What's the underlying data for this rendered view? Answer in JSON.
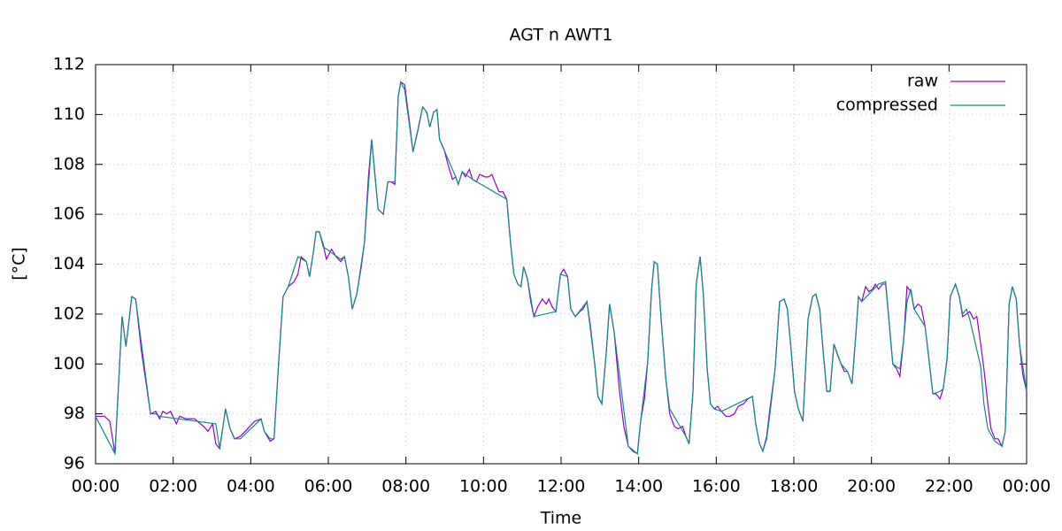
{
  "chart_data": {
    "type": "line",
    "title": "AGT n AWT1",
    "x_label": "Time",
    "y_label": "[°C]",
    "xlim": [
      0,
      1440
    ],
    "ylim": [
      96,
      112
    ],
    "xticks": [
      {
        "value": 0,
        "label": "00:00"
      },
      {
        "value": 120,
        "label": "02:00"
      },
      {
        "value": 240,
        "label": "04:00"
      },
      {
        "value": 360,
        "label": "06:00"
      },
      {
        "value": 480,
        "label": "08:00"
      },
      {
        "value": 600,
        "label": "10:00"
      },
      {
        "value": 720,
        "label": "12:00"
      },
      {
        "value": 840,
        "label": "14:00"
      },
      {
        "value": 960,
        "label": "16:00"
      },
      {
        "value": 1080,
        "label": "18:00"
      },
      {
        "value": 1200,
        "label": "20:00"
      },
      {
        "value": 1320,
        "label": "22:00"
      },
      {
        "value": 1440,
        "label": "00:00"
      }
    ],
    "yticks": [
      96,
      98,
      100,
      102,
      104,
      106,
      108,
      110,
      112
    ],
    "grid": true,
    "legend": "top-right",
    "series": [
      {
        "name": "raw",
        "color": "#9400d3",
        "x": [
          0,
          14,
          22,
          30,
          41,
          47,
          56,
          62,
          71,
          85,
          93,
          99,
          104,
          110,
          116,
          125,
          130,
          140,
          153,
          167,
          174,
          181,
          186,
          192,
          201,
          208,
          215,
          224,
          235,
          246,
          256,
          261,
          270,
          276,
          283,
          290,
          298,
          307,
          313,
          318,
          326,
          331,
          337,
          341,
          346,
          352,
          357,
          365,
          372,
          379,
          385,
          391,
          397,
          404,
          411,
          416,
          422,
          427,
          437,
          445,
          452,
          457,
          463,
          468,
          472,
          478,
          485,
          491,
          498,
          506,
          512,
          517,
          523,
          528,
          532,
          539,
          545,
          552,
          557,
          561,
          567,
          572,
          578,
          583,
          589,
          594,
          602,
          608,
          613,
          619,
          624,
          630,
          636,
          642,
          647,
          653,
          658,
          662,
          668,
          673,
          678,
          684,
          691,
          697,
          701,
          706,
          712,
          719,
          724,
          730,
          735,
          742,
          749,
          754,
          760,
          765,
          772,
          777,
          783,
          790,
          795,
          802,
          810,
          817,
          824,
          831,
          838,
          843,
          849,
          854,
          860,
          864,
          869,
          875,
          882,
          888,
          895,
          901,
          908,
          913,
          918,
          924,
          929,
          935,
          940,
          946,
          951,
          957,
          962,
          968,
          975,
          981,
          988,
          994,
          1002,
          1009,
          1016,
          1021,
          1027,
          1032,
          1038,
          1043,
          1051,
          1058,
          1065,
          1070,
          1076,
          1081,
          1087,
          1094,
          1102,
          1109,
          1114,
          1120,
          1125,
          1131,
          1136,
          1142,
          1147,
          1153,
          1158,
          1163,
          1170,
          1176,
          1180,
          1185,
          1191,
          1196,
          1202,
          1206,
          1211,
          1217,
          1222,
          1228,
          1233,
          1239,
          1244,
          1250,
          1255,
          1261,
          1266,
          1272,
          1277,
          1283,
          1288,
          1295,
          1300,
          1306,
          1311,
          1317,
          1322,
          1330,
          1336,
          1341,
          1347,
          1352,
          1358,
          1363,
          1369,
          1374,
          1380,
          1385,
          1391,
          1396,
          1402,
          1407,
          1413,
          1418,
          1424,
          1429,
          1434,
          1440
        ],
        "values": [
          97.9,
          97.9,
          97.7,
          96.4,
          101.9,
          100.7,
          102.7,
          102.6,
          100.5,
          98.0,
          98.1,
          97.8,
          98.1,
          98.0,
          98.1,
          97.6,
          97.9,
          97.8,
          97.8,
          97.5,
          97.3,
          97.6,
          96.8,
          96.6,
          98.2,
          97.4,
          97.0,
          97.1,
          97.4,
          97.7,
          97.8,
          97.3,
          96.9,
          97.0,
          100.0,
          102.7,
          103.1,
          103.3,
          103.6,
          104.3,
          104.1,
          103.5,
          104.5,
          105.3,
          105.3,
          104.8,
          104.2,
          104.6,
          104.3,
          104.1,
          104.3,
          103.5,
          102.2,
          102.8,
          103.9,
          104.9,
          107.5,
          109.0,
          106.2,
          106.0,
          107.3,
          107.3,
          107.2,
          110.7,
          111.3,
          111.2,
          109.8,
          108.5,
          109.3,
          110.3,
          110.1,
          109.5,
          110.1,
          110.2,
          109.0,
          108.6,
          108.0,
          107.4,
          107.5,
          107.2,
          107.7,
          107.5,
          107.8,
          107.4,
          107.3,
          107.6,
          107.5,
          107.5,
          107.6,
          107.2,
          106.9,
          106.9,
          106.6,
          104.8,
          103.6,
          103.2,
          103.1,
          103.9,
          103.4,
          102.5,
          101.9,
          102.3,
          102.6,
          102.4,
          102.6,
          102.3,
          102.1,
          103.6,
          103.8,
          103.5,
          102.2,
          101.9,
          102.1,
          102.2,
          102.5,
          101.6,
          100.0,
          98.7,
          98.4,
          100.5,
          102.4,
          101.3,
          99.0,
          97.5,
          96.7,
          96.5,
          96.4,
          97.7,
          98.6,
          100.1,
          103.0,
          104.1,
          104.0,
          101.7,
          99.4,
          98.0,
          97.5,
          97.4,
          97.5,
          97.1,
          96.8,
          98.9,
          103.2,
          104.3,
          102.8,
          99.8,
          98.4,
          98.2,
          98.3,
          98.1,
          97.9,
          97.9,
          98.0,
          98.3,
          98.4,
          98.6,
          98.7,
          97.6,
          96.8,
          96.5,
          97.1,
          98.2,
          99.8,
          102.5,
          102.6,
          102.2,
          100.5,
          98.9,
          98.2,
          97.7,
          101.8,
          102.7,
          102.8,
          102.2,
          100.6,
          98.9,
          98.9,
          100.8,
          100.4,
          100.0,
          99.7,
          99.7,
          99.2,
          101.2,
          102.7,
          102.5,
          103.1,
          102.9,
          103.0,
          103.2,
          103.0,
          103.2,
          103.2,
          101.5,
          100.0,
          99.8,
          99.5,
          101.0,
          103.1,
          102.9,
          102.2,
          102.4,
          102.3,
          101.5,
          100.4,
          98.8,
          98.8,
          98.6,
          99.0,
          100.2,
          102.7,
          103.2,
          102.7,
          101.9,
          102.0,
          102.1,
          101.8,
          101.9,
          100.8,
          99.8,
          98.4,
          97.4,
          97.0,
          97.0,
          96.7,
          97.3,
          102.4,
          103.1,
          102.6,
          100.8,
          99.6,
          98.9
        ]
      },
      {
        "name": "compressed",
        "color": "#128a84",
        "x": [
          0,
          30,
          41,
          47,
          56,
          62,
          85,
          93,
          99,
          186,
          192,
          201,
          208,
          215,
          224,
          256,
          261,
          270,
          276,
          283,
          290,
          298,
          313,
          326,
          331,
          337,
          341,
          346,
          352,
          379,
          385,
          391,
          397,
          404,
          416,
          427,
          437,
          445,
          452,
          463,
          468,
          472,
          478,
          491,
          506,
          512,
          517,
          523,
          528,
          532,
          557,
          561,
          567,
          583,
          636,
          642,
          647,
          653,
          658,
          662,
          668,
          678,
          712,
          719,
          730,
          735,
          742,
          760,
          772,
          777,
          783,
          790,
          795,
          802,
          824,
          838,
          843,
          854,
          860,
          864,
          869,
          875,
          882,
          888,
          913,
          918,
          924,
          929,
          935,
          940,
          946,
          951,
          957,
          968,
          1016,
          1021,
          1027,
          1032,
          1038,
          1043,
          1051,
          1058,
          1065,
          1070,
          1076,
          1081,
          1087,
          1094,
          1102,
          1109,
          1114,
          1120,
          1125,
          1131,
          1136,
          1142,
          1153,
          1163,
          1170,
          1176,
          1180,
          1185,
          1211,
          1222,
          1228,
          1233,
          1244,
          1250,
          1255,
          1261,
          1266,
          1283,
          1288,
          1295,
          1306,
          1311,
          1317,
          1322,
          1330,
          1336,
          1341,
          1347,
          1352,
          1369,
          1374,
          1380,
          1391,
          1402,
          1407,
          1413,
          1418,
          1424,
          1429,
          1440
        ],
        "values": [
          97.9,
          96.4,
          101.9,
          100.7,
          102.7,
          102.6,
          98.0,
          98.0,
          97.9,
          97.6,
          96.6,
          98.2,
          97.4,
          97.0,
          97.0,
          97.8,
          97.3,
          97.0,
          97.0,
          100.0,
          102.7,
          103.1,
          104.3,
          104.1,
          103.5,
          104.5,
          105.3,
          105.3,
          104.7,
          104.2,
          104.3,
          103.5,
          102.2,
          102.8,
          104.9,
          109.0,
          106.2,
          106.0,
          107.3,
          107.3,
          110.7,
          111.3,
          111.0,
          108.5,
          110.3,
          110.1,
          109.5,
          110.1,
          110.2,
          109.0,
          107.5,
          107.2,
          107.7,
          107.4,
          106.6,
          104.8,
          103.6,
          103.2,
          103.1,
          103.9,
          103.4,
          101.9,
          102.1,
          103.6,
          103.5,
          102.2,
          101.9,
          102.5,
          100.0,
          98.7,
          98.4,
          100.5,
          102.4,
          101.3,
          96.7,
          96.4,
          97.7,
          100.1,
          103.0,
          104.1,
          104.0,
          101.7,
          99.4,
          98.2,
          97.1,
          96.8,
          98.9,
          103.2,
          104.3,
          102.8,
          99.8,
          98.4,
          98.2,
          98.1,
          98.7,
          97.6,
          96.8,
          96.5,
          97.0,
          98.0,
          99.8,
          102.5,
          102.6,
          102.2,
          100.5,
          98.9,
          98.2,
          97.7,
          101.8,
          102.7,
          102.8,
          102.2,
          100.6,
          98.9,
          98.9,
          100.8,
          100.0,
          99.7,
          99.2,
          101.2,
          102.7,
          102.5,
          103.2,
          103.3,
          101.5,
          100.0,
          99.8,
          101.0,
          102.5,
          103.0,
          102.2,
          101.5,
          100.4,
          98.8,
          98.9,
          99.0,
          100.2,
          102.7,
          103.2,
          102.7,
          102.0,
          102.2,
          101.8,
          99.9,
          98.4,
          97.4,
          96.9,
          96.7,
          97.3,
          102.4,
          103.1,
          102.6,
          100.8,
          98.9
        ]
      }
    ]
  }
}
